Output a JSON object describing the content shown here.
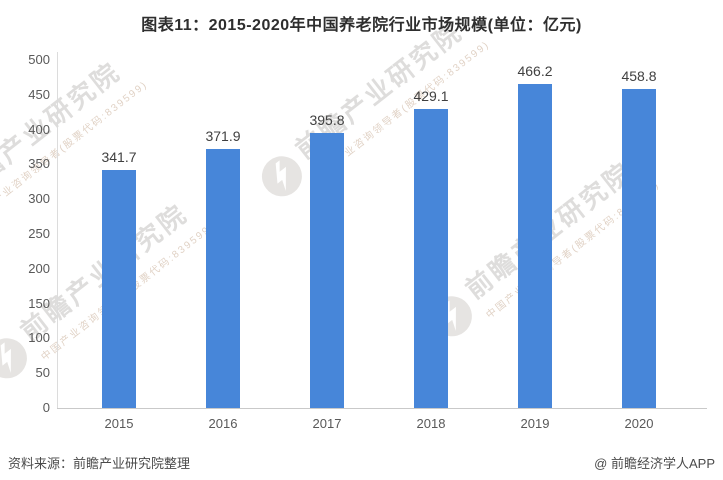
{
  "chart_data": {
    "type": "bar",
    "title": "图表11：2015-2020年中国养老院行业市场规模(单位：亿元)",
    "categories": [
      "2015",
      "2016",
      "2017",
      "2018",
      "2019",
      "2020"
    ],
    "values": [
      341.7,
      371.9,
      395.8,
      429.1,
      466.2,
      458.8
    ],
    "xlabel": "",
    "ylabel": "",
    "ylim": [
      0,
      500
    ],
    "ytick_step": 50,
    "grid": false,
    "legend": false,
    "value_labels": true,
    "bar_color": "#4786d9",
    "axis_line_color": "#c9c9c9",
    "label_color": "#404040",
    "tick_color": "#595959"
  },
  "footer": {
    "source": "资料来源：前瞻产业研究院整理",
    "credit": "@ 前瞻经济学人APP"
  },
  "watermark": {
    "logo": "qianzhan-circle-logo",
    "text": "前瞻产业研究院",
    "subtext": "中国产业咨询领导者(股票代码:839599)"
  }
}
